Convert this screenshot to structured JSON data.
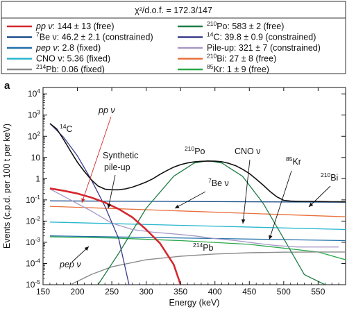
{
  "chart_data": {
    "type": "line",
    "panel_label": "a",
    "fit_summary": "χ²/d.o.f. = 172.3/147",
    "xlabel": "Energy (keV)",
    "ylabel": "Events (c.p.d. per 100 t per keV)",
    "xlim": [
      150,
      590
    ],
    "ylim": [
      1e-05,
      20000
    ],
    "yscale": "log",
    "x_ticks": [
      150,
      200,
      250,
      300,
      350,
      400,
      450,
      500,
      550
    ],
    "x_tick_labels": [
      "150",
      "200",
      "250",
      "300",
      "350",
      "400",
      "450",
      "500",
      "550"
    ],
    "y_tick_labels": [
      "10^-5",
      "10^-4",
      "10^-3",
      "10^-2",
      "10^-1",
      "1",
      "10",
      "10^2",
      "10^3",
      "10^4"
    ],
    "legend": [
      {
        "text": "pp ν: 144 ± 13 (free)",
        "color": "#d42a2f"
      },
      {
        "text": "7Be ν: 46.2 ± 2.1 (constrained)",
        "color": "#1c4e8a"
      },
      {
        "text": "pep ν: 2.8 (fixed)",
        "color": "#1f6fa8"
      },
      {
        "text": "CNO ν: 5.36 (fixed)",
        "color": "#28b6cf"
      },
      {
        "text": "214Pb: 0.06 (fixed)",
        "color": "#8c8c8c"
      },
      {
        "text": "210Po: 583 ± 2 (free)",
        "color": "#1e7d45"
      },
      {
        "text": "14C: 39.8 ± 0.9 (constrained)",
        "color": "#3a3a8c"
      },
      {
        "text": "Pile-up: 321 ± 7 (constrained)",
        "color": "#a898c8"
      },
      {
        "text": "210Bi: 27 ± 8 (free)",
        "color": "#e8703a"
      },
      {
        "text": "85Kr: 1 ± 9 (free)",
        "color": "#2aa84a"
      }
    ],
    "series": [
      {
        "key": "data",
        "color": "#111111",
        "x": [
          160,
          170,
          180,
          190,
          200,
          210,
          220,
          230,
          240,
          250,
          260,
          270,
          280,
          290,
          300,
          310,
          320,
          330,
          340,
          350,
          360,
          370,
          380,
          390,
          400,
          410,
          420,
          430,
          440,
          450,
          460,
          470,
          480,
          490,
          500,
          510,
          520,
          530,
          540,
          550,
          560,
          570,
          580,
          590
        ],
        "values": [
          400,
          220,
          70,
          20,
          6,
          2.2,
          0.9,
          0.45,
          0.32,
          0.3,
          0.3,
          0.33,
          0.4,
          0.52,
          0.7,
          1,
          1.6,
          2.4,
          3.5,
          4.6,
          5.5,
          6.2,
          6.6,
          6.8,
          6.7,
          6.3,
          5.3,
          4.1,
          2.8,
          1.75,
          0.95,
          0.5,
          0.25,
          0.14,
          0.095,
          0.088,
          0.086,
          0.085,
          0.085,
          0.084,
          0.083,
          0.082,
          0.082,
          0.081
        ]
      },
      {
        "key": "pp",
        "color": "#d42a2f",
        "x": [
          160,
          180,
          200,
          220,
          240,
          260,
          280,
          300,
          320,
          340,
          350
        ],
        "values": [
          0.35,
          0.27,
          0.2,
          0.13,
          0.075,
          0.037,
          0.015,
          0.004,
          0.0009,
          9e-05,
          1e-05
        ]
      },
      {
        "key": "be7",
        "color": "#1c4e8a",
        "x": [
          160,
          590
        ],
        "values": [
          0.09,
          0.078
        ]
      },
      {
        "key": "pep",
        "color": "#1f6fa8",
        "x": [
          160,
          590
        ],
        "values": [
          0.002,
          0.0012
        ]
      },
      {
        "key": "cno",
        "color": "#28b6cf",
        "x": [
          160,
          590
        ],
        "values": [
          0.009,
          0.004
        ]
      },
      {
        "key": "pb214",
        "color": "#8c8c8c",
        "x": [
          190,
          220,
          250,
          300,
          350,
          400,
          450,
          500,
          550,
          590
        ],
        "values": [
          1e-05,
          3e-05,
          7e-05,
          0.00015,
          0.00022,
          0.00028,
          0.00032,
          0.00034,
          0.00035,
          0.00035
        ]
      },
      {
        "key": "po210",
        "color": "#1e7d45",
        "x": [
          230,
          260,
          300,
          340,
          370,
          390,
          410,
          440,
          470,
          500,
          530,
          560
        ],
        "values": [
          1e-05,
          0.0003,
          0.04,
          1.3,
          5.5,
          7,
          5.5,
          1.3,
          0.07,
          0.0015,
          3e-05,
          1e-05
        ]
      },
      {
        "key": "c14",
        "color": "#3a3a8c",
        "x": [
          160,
          180,
          200,
          220,
          240,
          260,
          275
        ],
        "values": [
          400,
          90,
          12,
          0.9,
          0.05,
          0.0015,
          1e-05
        ]
      },
      {
        "key": "pileup",
        "color": "#a898c8",
        "x": [
          160,
          190,
          220,
          250,
          280,
          310,
          340,
          370,
          400,
          430,
          460,
          490,
          520,
          550,
          580
        ],
        "values": [
          0.33,
          0.1,
          0.03,
          0.008,
          0.004,
          0.003,
          0.0025,
          0.002,
          0.0015,
          0.0012,
          0.0009,
          0.0007,
          0.0006,
          0.0006,
          0.0006
        ]
      },
      {
        "key": "bi210",
        "color": "#e8703a",
        "x": [
          160,
          590
        ],
        "values": [
          0.05,
          0.016
        ]
      },
      {
        "key": "kr85",
        "color": "#2aa84a",
        "x": [
          160,
          250,
          350,
          450,
          550,
          590
        ],
        "values": [
          0.0018,
          0.0016,
          0.0012,
          0.0008,
          0.00035,
          0.00015
        ]
      }
    ],
    "annotations": [
      {
        "text": "pp ν",
        "italic": true,
        "color": "#d42a2f"
      },
      {
        "text": "14C"
      },
      {
        "text": "Synthetic"
      },
      {
        "text": "pile-up"
      },
      {
        "text": "210Po"
      },
      {
        "text": "CNO ν"
      },
      {
        "text": "85Kr"
      },
      {
        "text": "7Be ν"
      },
      {
        "text": "210Bi"
      },
      {
        "text": "214Pb"
      },
      {
        "text": "pep ν",
        "italic": true
      }
    ]
  }
}
